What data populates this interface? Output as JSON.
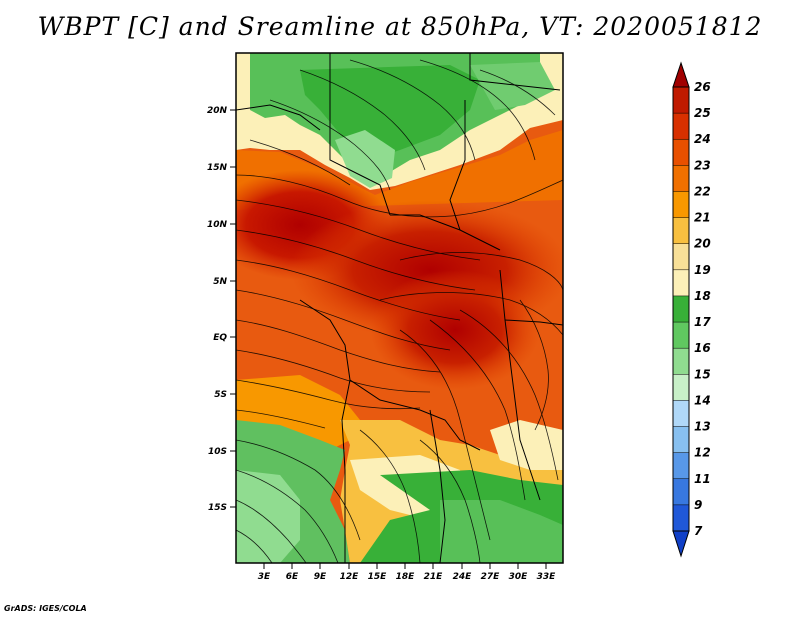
{
  "title": "WBPT [C] and Sreamline at 850hPa, VT: 2020051812",
  "credit": "GrADS: IGES/COLA",
  "map": {
    "lat_labels": [
      "20N",
      "15N",
      "10N",
      "5N",
      "EQ",
      "5S",
      "10S",
      "15S"
    ],
    "lon_labels": [
      "3E",
      "6E",
      "9E",
      "12E",
      "15E",
      "18E",
      "21E",
      "24E",
      "27E",
      "30E",
      "33E"
    ]
  },
  "colorbar": {
    "labels": [
      "26",
      "25",
      "24",
      "23",
      "22",
      "21",
      "20",
      "19",
      "18",
      "17",
      "16",
      "15",
      "14",
      "13",
      "12",
      "11",
      "9",
      "7"
    ],
    "colors": [
      "#a00000",
      "#c01a00",
      "#d83000",
      "#e85000",
      "#f07000",
      "#f89800",
      "#f8c040",
      "#f8e098",
      "#fcf0b8",
      "#38b038",
      "#60c860",
      "#90dc90",
      "#c8f0c8",
      "#b0d8f8",
      "#88c0f0",
      "#5898e8",
      "#3878e0",
      "#2058d8",
      "#1040c8"
    ]
  }
}
